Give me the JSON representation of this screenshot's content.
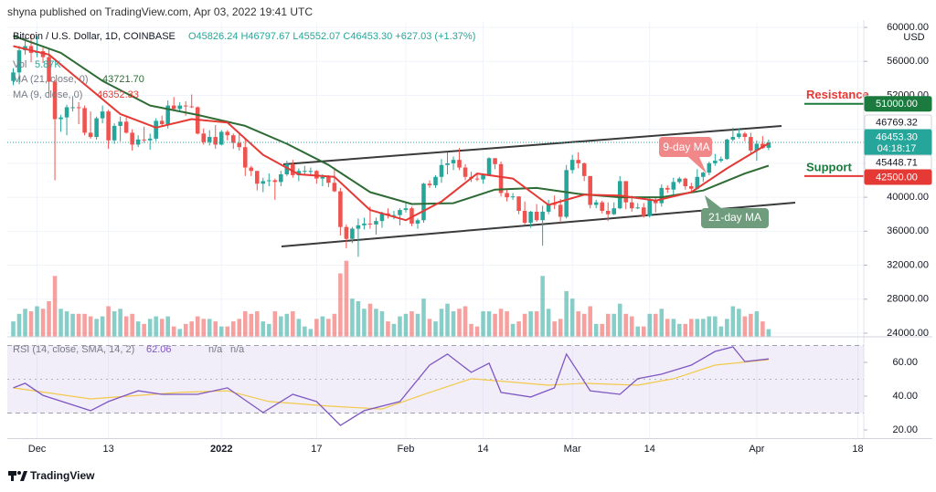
{
  "header": "shyna published on TradingView.com, Apr 03, 2022 19:41 UTC",
  "footer": "TradingView",
  "chart_data": {
    "type": "candlestick",
    "title": "Bitcoin / U.S. Dollar, 1D, COINBASE",
    "ohlc_legend": "O45826.24 H46797.67 L45552.07 C46453.30 +627.03 (+1.37%)",
    "up_color": "#26a69a",
    "down_color": "#ef5350",
    "xlim": [
      "2021-11-26",
      "2022-04-19"
    ],
    "xticks": [
      {
        "value": "2021-12-01",
        "label": "Dec"
      },
      {
        "value": "2021-12-13",
        "label": "13"
      },
      {
        "value": "2022-01-01",
        "label": "2022"
      },
      {
        "value": "2022-01-17",
        "label": "17"
      },
      {
        "value": "2022-02-01",
        "label": "Feb"
      },
      {
        "value": "2022-02-14",
        "label": "14"
      },
      {
        "value": "2022-03-01",
        "label": "Mar"
      },
      {
        "value": "2022-03-14",
        "label": "14"
      },
      {
        "value": "2022-04-01",
        "label": "Apr"
      },
      {
        "value": "2022-04-18",
        "label": "18"
      }
    ],
    "ylim": [
      23600,
      60700
    ],
    "yticks": [
      {
        "value": 24000,
        "label": "24000.00"
      },
      {
        "value": 28000,
        "label": "28000.00"
      },
      {
        "value": 32000,
        "label": "32000.00"
      },
      {
        "value": 36000,
        "label": "36000.00"
      },
      {
        "value": 40000,
        "label": "40000.00"
      },
      {
        "value": 44000,
        "label": "44000.00"
      },
      {
        "value": 48000,
        "label": "48000.00"
      },
      {
        "value": 52000,
        "label": "52000.00"
      },
      {
        "value": 56000,
        "label": "56000.00"
      },
      {
        "value": 60000,
        "label": "60000.00"
      }
    ],
    "y_unit": "USD",
    "grid": true,
    "x": [
      "2021-11-27",
      "2021-11-28",
      "2021-11-29",
      "2021-11-30",
      "2021-12-01",
      "2021-12-02",
      "2021-12-03",
      "2021-12-04",
      "2021-12-05",
      "2021-12-06",
      "2021-12-07",
      "2021-12-08",
      "2021-12-09",
      "2021-12-10",
      "2021-12-11",
      "2021-12-12",
      "2021-12-13",
      "2021-12-14",
      "2021-12-15",
      "2021-12-16",
      "2021-12-17",
      "2021-12-18",
      "2021-12-19",
      "2021-12-20",
      "2021-12-21",
      "2021-12-22",
      "2021-12-23",
      "2021-12-24",
      "2021-12-25",
      "2021-12-26",
      "2021-12-27",
      "2021-12-28",
      "2021-12-29",
      "2021-12-30",
      "2021-12-31",
      "2022-01-01",
      "2022-01-02",
      "2022-01-03",
      "2022-01-04",
      "2022-01-05",
      "2022-01-06",
      "2022-01-07",
      "2022-01-08",
      "2022-01-09",
      "2022-01-10",
      "2022-01-11",
      "2022-01-12",
      "2022-01-13",
      "2022-01-14",
      "2022-01-15",
      "2022-01-16",
      "2022-01-17",
      "2022-01-18",
      "2022-01-19",
      "2022-01-20",
      "2022-01-21",
      "2022-01-22",
      "2022-01-23",
      "2022-01-24",
      "2022-01-25",
      "2022-01-26",
      "2022-01-27",
      "2022-01-28",
      "2022-01-29",
      "2022-01-30",
      "2022-01-31",
      "2022-02-01",
      "2022-02-02",
      "2022-02-03",
      "2022-02-04",
      "2022-02-05",
      "2022-02-06",
      "2022-02-07",
      "2022-02-08",
      "2022-02-09",
      "2022-02-10",
      "2022-02-11",
      "2022-02-12",
      "2022-02-13",
      "2022-02-14",
      "2022-02-15",
      "2022-02-16",
      "2022-02-17",
      "2022-02-18",
      "2022-02-19",
      "2022-02-20",
      "2022-02-21",
      "2022-02-22",
      "2022-02-23",
      "2022-02-24",
      "2022-02-25",
      "2022-02-26",
      "2022-02-27",
      "2022-02-28",
      "2022-03-01",
      "2022-03-02",
      "2022-03-03",
      "2022-03-04",
      "2022-03-05",
      "2022-03-06",
      "2022-03-07",
      "2022-03-08",
      "2022-03-09",
      "2022-03-10",
      "2022-03-11",
      "2022-03-12",
      "2022-03-13",
      "2022-03-14",
      "2022-03-15",
      "2022-03-16",
      "2022-03-17",
      "2022-03-18",
      "2022-03-19",
      "2022-03-20",
      "2022-03-21",
      "2022-03-22",
      "2022-03-23",
      "2022-03-24",
      "2022-03-25",
      "2022-03-26",
      "2022-03-27",
      "2022-03-28",
      "2022-03-29",
      "2022-03-30",
      "2022-03-31",
      "2022-04-01",
      "2022-04-02",
      "2022-04-03"
    ],
    "open": [
      53700,
      54700,
      57300,
      57800,
      57000,
      57200,
      56500,
      53600,
      49200,
      49400,
      50600,
      50600,
      50500,
      47600,
      47100,
      49300,
      50100,
      46700,
      48400,
      48900,
      47600,
      46200,
      46800,
      46700,
      46900,
      49000,
      48600,
      50800,
      50400,
      50800,
      50700,
      50600,
      47500,
      46500,
      47100,
      46200,
      47700,
      47300,
      46400,
      45900,
      43500,
      43100,
      41600,
      41900,
      42000,
      41800,
      42700,
      43900,
      42600,
      43100,
      43100,
      43100,
      42200,
      42400,
      41700,
      40700,
      36500,
      35100,
      36300,
      36700,
      36900,
      36800,
      37200,
      38100,
      37900,
      37900,
      38500,
      38700,
      36900,
      37300,
      41600,
      41400,
      42400,
      43800,
      44000,
      44400,
      43500,
      42400,
      42200,
      42100,
      42600,
      44600,
      43900,
      40500,
      40000,
      40100,
      38400,
      37000,
      38300,
      37300,
      38300,
      39200,
      39100,
      37700,
      43200,
      44400,
      44000,
      42500,
      39100,
      39400,
      38400,
      38000,
      38700,
      41900,
      39400,
      38700,
      38800,
      37800,
      39700,
      39300,
      41100,
      40900,
      41800,
      42200,
      41300,
      41000,
      42400,
      42900,
      44000,
      44300,
      44500,
      46800,
      47100,
      47500,
      47100,
      45500,
      46300,
      45826.24
    ],
    "high": [
      55200,
      57800,
      58800,
      59200,
      59000,
      57600,
      57600,
      53900,
      49700,
      50900,
      51900,
      51200,
      50800,
      50100,
      49500,
      50800,
      50300,
      48700,
      49500,
      49400,
      48000,
      47300,
      48300,
      47500,
      49300,
      49600,
      51400,
      51800,
      51200,
      51300,
      52100,
      50700,
      48100,
      47900,
      48500,
      47900,
      47900,
      47500,
      47500,
      47000,
      43700,
      43100,
      42300,
      42800,
      42200,
      43100,
      44300,
      44400,
      43400,
      43700,
      43500,
      43200,
      42700,
      42600,
      43500,
      41100,
      36800,
      36500,
      37500,
      37600,
      38900,
      37600,
      38300,
      38700,
      38400,
      38700,
      39300,
      38900,
      37500,
      41700,
      42000,
      42600,
      44500,
      45300,
      44800,
      45800,
      43900,
      43000,
      42700,
      42800,
      44700,
      44600,
      44200,
      40900,
      40500,
      40100,
      39500,
      38400,
      39200,
      39000,
      39700,
      40200,
      39800,
      43800,
      45000,
      45300,
      44100,
      42500,
      39700,
      39600,
      39400,
      39400,
      42500,
      41900,
      40200,
      39300,
      39300,
      39900,
      39900,
      41500,
      41400,
      42300,
      42400,
      42300,
      41700,
      43300,
      43000,
      44200,
      45100,
      44800,
      46900,
      48200,
      48100,
      47700,
      47600,
      46700,
      47200,
      46797.67
    ],
    "low": [
      53200,
      53300,
      56800,
      55900,
      56500,
      55800,
      51700,
      42000,
      47700,
      47300,
      50100,
      48600,
      47300,
      46900,
      46800,
      48700,
      45700,
      46300,
      46600,
      47500,
      45500,
      45900,
      46400,
      45600,
      46600,
      48400,
      48100,
      50200,
      50200,
      49600,
      50500,
      47400,
      46200,
      46100,
      45700,
      46100,
      46700,
      45700,
      45500,
      42500,
      42500,
      40800,
      40600,
      41300,
      39700,
      41300,
      42500,
      42300,
      41900,
      42700,
      42600,
      41600,
      41300,
      41200,
      40600,
      35500,
      34000,
      34600,
      33000,
      36200,
      36300,
      35600,
      36400,
      37500,
      37400,
      36700,
      38200,
      36600,
      36300,
      37000,
      41100,
      41100,
      41700,
      42700,
      43200,
      43200,
      42000,
      41800,
      41900,
      41600,
      42500,
      43300,
      40100,
      39500,
      39700,
      38000,
      36800,
      36400,
      37100,
      34300,
      38000,
      38600,
      37000,
      37500,
      42800,
      43400,
      41900,
      38700,
      38700,
      38100,
      37200,
      37900,
      38600,
      38600,
      38300,
      38600,
      37600,
      37600,
      38200,
      38900,
      40500,
      40100,
      41600,
      40900,
      40500,
      40900,
      41800,
      42600,
      43700,
      44100,
      44400,
      46600,
      46900,
      46600,
      45200,
      44300,
      45700,
      45552.07
    ],
    "close": [
      54700,
      57300,
      57800,
      57000,
      57200,
      56500,
      53600,
      49200,
      49400,
      50600,
      50600,
      50500,
      47600,
      47100,
      49300,
      50100,
      46700,
      48400,
      48900,
      47600,
      46200,
      46800,
      46700,
      46900,
      49000,
      48600,
      50800,
      50400,
      50800,
      50700,
      50600,
      47500,
      46500,
      47100,
      46200,
      47700,
      47300,
      46400,
      45900,
      43500,
      43100,
      41600,
      41900,
      42000,
      41800,
      42700,
      43900,
      42600,
      43100,
      43100,
      43100,
      42200,
      42400,
      41700,
      40700,
      36500,
      35100,
      36300,
      36700,
      36900,
      36800,
      37200,
      38100,
      37900,
      37900,
      38500,
      38700,
      36900,
      37300,
      41600,
      41400,
      42400,
      43800,
      44000,
      44400,
      43500,
      42400,
      42200,
      42100,
      42600,
      44600,
      43900,
      40500,
      40000,
      40100,
      38400,
      37000,
      38300,
      37300,
      38300,
      39200,
      39100,
      37700,
      43200,
      44400,
      44000,
      42500,
      39100,
      39400,
      38400,
      38000,
      38700,
      41900,
      39400,
      38700,
      38800,
      37800,
      39700,
      39300,
      41100,
      40900,
      41800,
      42200,
      41300,
      41000,
      42400,
      42900,
      44000,
      44300,
      44500,
      46800,
      47100,
      47500,
      47100,
      45500,
      46300,
      45800,
      46453.3
    ],
    "volume": [
      12,
      18,
      22,
      20,
      24,
      22,
      28,
      48,
      22,
      20,
      18,
      18,
      18,
      16,
      14,
      16,
      24,
      20,
      22,
      16,
      18,
      12,
      10,
      14,
      16,
      14,
      16,
      8,
      6,
      10,
      12,
      16,
      14,
      14,
      12,
      8,
      8,
      12,
      14,
      20,
      18,
      20,
      12,
      10,
      20,
      16,
      18,
      20,
      14,
      8,
      6,
      14,
      16,
      14,
      18,
      50,
      60,
      30,
      28,
      22,
      26,
      22,
      20,
      12,
      10,
      16,
      18,
      20,
      18,
      30,
      14,
      12,
      22,
      26,
      20,
      22,
      24,
      10,
      8,
      20,
      20,
      18,
      22,
      20,
      10,
      12,
      18,
      20,
      20,
      48,
      22,
      12,
      14,
      36,
      30,
      20,
      18,
      24,
      10,
      10,
      18,
      18,
      26,
      18,
      16,
      8,
      8,
      18,
      18,
      22,
      14,
      14,
      10,
      10,
      14,
      14,
      14,
      16,
      16,
      8,
      14,
      24,
      22,
      16,
      18,
      20,
      12,
      5.87
    ],
    "volume_legend": {
      "label": "Vol",
      "value_label": "5.87K"
    },
    "series": [
      {
        "name": "MA (21, close, 0)",
        "color": "#2e6b35",
        "legend_value": "43721.70",
        "x": [
          "2021-11-27",
          "2021-12-05",
          "2021-12-12",
          "2021-12-20",
          "2021-12-28",
          "2022-01-05",
          "2022-01-12",
          "2022-01-19",
          "2022-01-26",
          "2022-02-02",
          "2022-02-09",
          "2022-02-16",
          "2022-02-23",
          "2022-03-02",
          "2022-03-09",
          "2022-03-16",
          "2022-03-23",
          "2022-03-30",
          "2022-04-03"
        ],
        "values": [
          59000,
          57000,
          53700,
          50800,
          49700,
          48400,
          46300,
          43800,
          40600,
          39200,
          39300,
          40900,
          41100,
          40400,
          40000,
          40000,
          40800,
          42800,
          43721.7
        ]
      },
      {
        "name": "MA (9, close, 0)",
        "color": "#e53935",
        "legend_value": "46352.33",
        "x": [
          "2021-11-27",
          "2021-12-03",
          "2021-12-09",
          "2021-12-15",
          "2021-12-21",
          "2021-12-27",
          "2022-01-02",
          "2022-01-08",
          "2022-01-14",
          "2022-01-20",
          "2022-01-26",
          "2022-02-01",
          "2022-02-07",
          "2022-02-13",
          "2022-02-19",
          "2022-02-25",
          "2022-03-03",
          "2022-03-09",
          "2022-03-15",
          "2022-03-21",
          "2022-03-27",
          "2022-04-03"
        ],
        "values": [
          57800,
          56800,
          53300,
          49800,
          48200,
          49200,
          48800,
          45000,
          42700,
          42400,
          38500,
          37300,
          39500,
          42800,
          42200,
          39100,
          40300,
          40200,
          39600,
          40600,
          43400,
          46352.33
        ]
      }
    ],
    "levels": [
      {
        "label": "Resistance",
        "value": 51000,
        "label_color": "#e53935",
        "line_color": "#1b7a3e"
      },
      {
        "label": "Support",
        "value": 42500,
        "label_color": "#1b7a3e",
        "line_color": "#e53935"
      }
    ],
    "price_tags": [
      {
        "value": 51000,
        "label": "51000.00",
        "color": "#1b7a3e",
        "text_color": "#ffffff"
      },
      {
        "value": 46769.32,
        "label": "46769.32",
        "color": "#ffffff",
        "text_color": "#131722"
      },
      {
        "value": 46453.3,
        "label": "46453.30",
        "countdown": "04:18:17",
        "color": "#26a69a",
        "text_color": "#ffffff"
      },
      {
        "value": 45448.71,
        "label": "45448.71",
        "color": "#ffffff",
        "text_color": "#131722"
      },
      {
        "value": 42500,
        "label": "42500.00",
        "color": "#e53935",
        "text_color": "#ffffff"
      }
    ],
    "annotations": [
      {
        "text": "9-day MA"
      },
      {
        "text": "21-day MA"
      }
    ],
    "rsi": {
      "label": "RSI (14, close, SMA, 14, 2)",
      "value_label": "62.06",
      "na_labels": [
        "n/a",
        "n/a"
      ],
      "ylim": [
        15,
        75
      ],
      "yticks": [
        {
          "value": 20,
          "label": "20.00"
        },
        {
          "value": 40,
          "label": "40.00"
        },
        {
          "value": 60,
          "label": "60.00"
        }
      ],
      "band": [
        30,
        70
      ],
      "mid": 50,
      "line": {
        "color": "#7e57c2",
        "x": [
          "2021-11-27",
          "2021-11-29",
          "2021-12-02",
          "2021-12-10",
          "2021-12-13",
          "2021-12-18",
          "2021-12-22",
          "2021-12-28",
          "2022-01-02",
          "2022-01-08",
          "2022-01-13",
          "2022-01-17",
          "2022-01-21",
          "2022-01-25",
          "2022-01-31",
          "2022-02-05",
          "2022-02-08",
          "2022-02-12",
          "2022-02-15",
          "2022-02-17",
          "2022-02-22",
          "2022-02-26",
          "2022-02-28",
          "2022-03-04",
          "2022-03-09",
          "2022-03-12",
          "2022-03-16",
          "2022-03-21",
          "2022-03-25",
          "2022-03-28",
          "2022-03-30",
          "2022-04-03"
        ],
        "values": [
          44.9,
          47.6,
          40.5,
          31.4,
          36.8,
          43.2,
          41.1,
          41.1,
          44.9,
          30.3,
          41.1,
          36.8,
          22.7,
          31.4,
          36.8,
          58.4,
          64.9,
          54.1,
          59.5,
          42.2,
          39.5,
          44.9,
          64.9,
          43.2,
          41.1,
          50.3,
          53.0,
          58.4,
          66.5,
          69.2,
          60.5,
          62.06
        ]
      },
      "sma": {
        "color": "#f2c94c",
        "x": [
          "2021-11-27",
          "2021-12-10",
          "2021-12-25",
          "2022-01-02",
          "2022-01-09",
          "2022-01-19",
          "2022-01-28",
          "2022-02-05",
          "2022-02-12",
          "2022-02-18",
          "2022-02-25",
          "2022-03-03",
          "2022-03-12",
          "2022-03-18",
          "2022-03-25",
          "2022-04-03"
        ],
        "values": [
          44.9,
          38.4,
          42.2,
          43.2,
          36.8,
          34.1,
          32.4,
          42.2,
          50.3,
          48.6,
          46.5,
          47.6,
          46.5,
          50.3,
          58.4,
          61.6
        ]
      }
    }
  }
}
